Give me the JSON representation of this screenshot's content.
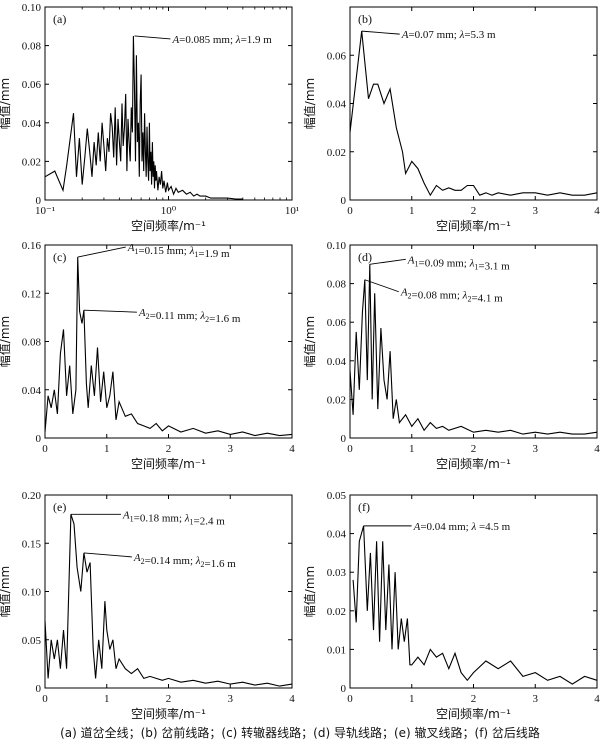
{
  "caption": "(a) 道岔全线；(b) 岔前线路；(c) 转辙器线路；(d) 导轨线路；(e) 辙叉线路；(f) 岔后线路",
  "chart_data": [
    {
      "type": "line",
      "panel_label": "(a)",
      "xlabel": "空间频率/m⁻¹",
      "ylabel": "幅值/mm",
      "xscale": "log",
      "xlim": [
        0.1,
        10
      ],
      "ylim": [
        0,
        0.1
      ],
      "xticks": [
        0.1,
        1,
        10
      ],
      "xtick_labels": [
        "10⁻¹",
        "10⁰",
        "10¹"
      ],
      "yticks": [
        0,
        0.02,
        0.04,
        0.06,
        0.08,
        0.1
      ],
      "ytick_labels": [
        "0",
        "0.02",
        "0.04",
        "0.06",
        "0.08",
        "0.10"
      ],
      "annotations": [
        {
          "text": "A=0.085 mm; λ=1.9 m",
          "x": 0.53,
          "y": 0.085
        }
      ],
      "series": [
        {
          "x": [
            0.1,
            0.12,
            0.14,
            0.15,
            0.17,
            0.18,
            0.19,
            0.2,
            0.21,
            0.22,
            0.23,
            0.24,
            0.25,
            0.26,
            0.27,
            0.28,
            0.29,
            0.3,
            0.31,
            0.32,
            0.33,
            0.34,
            0.35,
            0.36,
            0.37,
            0.38,
            0.39,
            0.4,
            0.41,
            0.42,
            0.43,
            0.44,
            0.45,
            0.46,
            0.47,
            0.48,
            0.49,
            0.5,
            0.51,
            0.52,
            0.53,
            0.54,
            0.55,
            0.56,
            0.57,
            0.58,
            0.59,
            0.6,
            0.61,
            0.62,
            0.63,
            0.64,
            0.65,
            0.66,
            0.67,
            0.68,
            0.69,
            0.7,
            0.71,
            0.72,
            0.73,
            0.74,
            0.75,
            0.76,
            0.77,
            0.78,
            0.79,
            0.8,
            0.82,
            0.84,
            0.86,
            0.88,
            0.9,
            0.92,
            0.95,
            0.98,
            1.0,
            1.05,
            1.1,
            1.15,
            1.2,
            1.3,
            1.4,
            1.5,
            1.6,
            1.7,
            1.8,
            2.0,
            2.2,
            2.5,
            3.0,
            3.5,
            4.0
          ],
          "y": [
            0.012,
            0.015,
            0.005,
            0.018,
            0.045,
            0.012,
            0.032,
            0.008,
            0.022,
            0.037,
            0.025,
            0.012,
            0.03,
            0.018,
            0.035,
            0.02,
            0.04,
            0.028,
            0.015,
            0.032,
            0.025,
            0.045,
            0.038,
            0.022,
            0.048,
            0.018,
            0.042,
            0.03,
            0.02,
            0.05,
            0.028,
            0.038,
            0.055,
            0.015,
            0.042,
            0.03,
            0.02,
            0.048,
            0.035,
            0.085,
            0.06,
            0.02,
            0.075,
            0.03,
            0.04,
            0.012,
            0.05,
            0.065,
            0.02,
            0.035,
            0.015,
            0.045,
            0.025,
            0.012,
            0.038,
            0.02,
            0.01,
            0.04,
            0.015,
            0.025,
            0.008,
            0.03,
            0.012,
            0.02,
            0.006,
            0.018,
            0.01,
            0.015,
            0.005,
            0.012,
            0.008,
            0.015,
            0.006,
            0.01,
            0.004,
            0.009,
            0.005,
            0.007,
            0.003,
            0.006,
            0.004,
            0.005,
            0.003,
            0.004,
            0.002,
            0.003,
            0.002,
            0.002,
            0.001,
            0.001,
            0.001,
            0.0005,
            0.0005
          ]
        }
      ]
    },
    {
      "type": "line",
      "panel_label": "(b)",
      "xlabel": "空间频率/m⁻¹",
      "ylabel": "幅值/mm",
      "xlim": [
        0,
        4
      ],
      "ylim": [
        0,
        0.08
      ],
      "xticks": [
        0,
        1,
        2,
        3,
        4
      ],
      "xtick_labels": [
        "0",
        "1",
        "2",
        "3",
        "4"
      ],
      "yticks": [
        0,
        0.02,
        0.04,
        0.06
      ],
      "ytick_labels": [
        "0",
        "0.02",
        "0.04",
        "0.06"
      ],
      "annotations": [
        {
          "text": "A=0.07 mm; λ=5.3 m",
          "x": 0.19,
          "y": 0.07
        }
      ],
      "series": [
        {
          "x": [
            0,
            0.19,
            0.3,
            0.38,
            0.45,
            0.55,
            0.65,
            0.75,
            0.8,
            0.85,
            0.9,
            1.0,
            1.1,
            1.2,
            1.3,
            1.4,
            1.5,
            1.6,
            1.7,
            1.8,
            1.9,
            2.0,
            2.1,
            2.2,
            2.3,
            2.4,
            2.6,
            2.8,
            3.0,
            3.2,
            3.4,
            3.6,
            3.8,
            4.0
          ],
          "y": [
            0.028,
            0.07,
            0.042,
            0.048,
            0.048,
            0.04,
            0.046,
            0.03,
            0.025,
            0.02,
            0.011,
            0.016,
            0.013,
            0.007,
            0.002,
            0.006,
            0.004,
            0.005,
            0.004,
            0.004,
            0.006,
            0.006,
            0.002,
            0.003,
            0.002,
            0.003,
            0.002,
            0.003,
            0.003,
            0.002,
            0.003,
            0.002,
            0.002,
            0.003
          ]
        }
      ]
    },
    {
      "type": "line",
      "panel_label": "(c)",
      "xlabel": "空间频率/m⁻¹",
      "ylabel": "幅值/mm",
      "xlim": [
        0,
        4
      ],
      "ylim": [
        0,
        0.16
      ],
      "xticks": [
        0,
        1,
        2,
        3,
        4
      ],
      "xtick_labels": [
        "0",
        "1",
        "2",
        "3",
        "4"
      ],
      "yticks": [
        0,
        0.04,
        0.08,
        0.12,
        0.16
      ],
      "ytick_labels": [
        "0",
        "0.04",
        "0.08",
        "0.12",
        "0.16"
      ],
      "annotations": [
        {
          "text": "A1=0.15 mm; λ1=1.9 m",
          "x": 0.53,
          "y": 0.15
        },
        {
          "text": "A2=0.11 mm; λ2=1.6 m",
          "x": 0.63,
          "y": 0.106
        }
      ],
      "series": [
        {
          "x": [
            0,
            0.05,
            0.1,
            0.15,
            0.2,
            0.25,
            0.3,
            0.35,
            0.4,
            0.45,
            0.5,
            0.53,
            0.56,
            0.6,
            0.63,
            0.67,
            0.7,
            0.75,
            0.8,
            0.85,
            0.9,
            0.95,
            1.0,
            1.05,
            1.1,
            1.15,
            1.2,
            1.3,
            1.4,
            1.5,
            1.6,
            1.7,
            1.8,
            1.9,
            2.0,
            2.2,
            2.4,
            2.6,
            2.8,
            3.0,
            3.2,
            3.4,
            3.6,
            3.8,
            4.0
          ],
          "y": [
            0.005,
            0.035,
            0.025,
            0.04,
            0.02,
            0.07,
            0.09,
            0.035,
            0.06,
            0.02,
            0.04,
            0.15,
            0.105,
            0.095,
            0.106,
            0.045,
            0.025,
            0.06,
            0.035,
            0.075,
            0.03,
            0.055,
            0.025,
            0.035,
            0.055,
            0.015,
            0.03,
            0.018,
            0.02,
            0.012,
            0.01,
            0.008,
            0.012,
            0.006,
            0.01,
            0.005,
            0.008,
            0.004,
            0.006,
            0.003,
            0.005,
            0.002,
            0.004,
            0.002,
            0.003
          ]
        }
      ]
    },
    {
      "type": "line",
      "panel_label": "(d)",
      "xlabel": "空间频率/m⁻¹",
      "ylabel": "幅值/mm",
      "xlim": [
        0,
        4
      ],
      "ylim": [
        0,
        0.1
      ],
      "xticks": [
        0,
        1,
        2,
        3,
        4
      ],
      "xtick_labels": [
        "0",
        "1",
        "2",
        "3",
        "4"
      ],
      "yticks": [
        0,
        0.02,
        0.04,
        0.06,
        0.08,
        0.1
      ],
      "ytick_labels": [
        "0",
        "0.02",
        "0.04",
        "0.06",
        "0.08",
        "0.10"
      ],
      "annotations": [
        {
          "text": "A1=0.09 mm; λ1=3.1 m",
          "x": 0.32,
          "y": 0.09
        },
        {
          "text": "A2=0.08 mm; λ2=4.1 m",
          "x": 0.24,
          "y": 0.082
        }
      ],
      "series": [
        {
          "x": [
            0,
            0.05,
            0.1,
            0.15,
            0.2,
            0.24,
            0.28,
            0.32,
            0.36,
            0.4,
            0.45,
            0.5,
            0.55,
            0.6,
            0.65,
            0.7,
            0.75,
            0.8,
            0.9,
            1.0,
            1.1,
            1.2,
            1.3,
            1.4,
            1.5,
            1.6,
            1.8,
            2.0,
            2.2,
            2.4,
            2.6,
            2.8,
            3.0,
            3.2,
            3.4,
            3.6,
            3.8,
            4.0
          ],
          "y": [
            0.035,
            0.012,
            0.055,
            0.025,
            0.065,
            0.082,
            0.03,
            0.09,
            0.02,
            0.075,
            0.015,
            0.057,
            0.03,
            0.02,
            0.045,
            0.01,
            0.02,
            0.008,
            0.012,
            0.006,
            0.01,
            0.004,
            0.008,
            0.005,
            0.006,
            0.004,
            0.006,
            0.003,
            0.004,
            0.003,
            0.004,
            0.002,
            0.003,
            0.002,
            0.003,
            0.002,
            0.002,
            0.003
          ]
        }
      ]
    },
    {
      "type": "line",
      "panel_label": "(e)",
      "xlabel": "空间频率/m⁻¹",
      "ylabel": "幅值/mm",
      "xlim": [
        0,
        4
      ],
      "ylim": [
        0,
        0.2
      ],
      "xticks": [
        0,
        1,
        2,
        3,
        4
      ],
      "xtick_labels": [
        "0",
        "1",
        "2",
        "3",
        "4"
      ],
      "yticks": [
        0,
        0.05,
        0.1,
        0.15,
        0.2
      ],
      "ytick_labels": [
        "0",
        "0.05",
        "0.10",
        "0.15",
        "0.20"
      ],
      "annotations": [
        {
          "text": "A1=0.18 mm; λ1=2.4 m",
          "x": 0.42,
          "y": 0.18
        },
        {
          "text": "A2=0.14 mm; λ2=1.6 m",
          "x": 0.63,
          "y": 0.14
        }
      ],
      "series": [
        {
          "x": [
            0,
            0.05,
            0.1,
            0.15,
            0.2,
            0.25,
            0.3,
            0.35,
            0.42,
            0.47,
            0.52,
            0.58,
            0.63,
            0.68,
            0.73,
            0.78,
            0.82,
            0.87,
            0.92,
            0.97,
            1.0,
            1.05,
            1.1,
            1.15,
            1.2,
            1.3,
            1.4,
            1.5,
            1.6,
            1.7,
            1.8,
            1.9,
            2.0,
            2.2,
            2.4,
            2.6,
            2.8,
            3.0,
            3.2,
            3.4,
            3.6,
            3.8,
            4.0
          ],
          "y": [
            0.07,
            0.01,
            0.05,
            0.03,
            0.05,
            0.02,
            0.06,
            0.02,
            0.18,
            0.17,
            0.125,
            0.1,
            0.14,
            0.12,
            0.13,
            0.04,
            0.01,
            0.05,
            0.02,
            0.09,
            0.06,
            0.04,
            0.05,
            0.02,
            0.03,
            0.02,
            0.015,
            0.02,
            0.01,
            0.012,
            0.01,
            0.008,
            0.01,
            0.006,
            0.008,
            0.005,
            0.007,
            0.004,
            0.006,
            0.003,
            0.005,
            0.002,
            0.004
          ]
        }
      ]
    },
    {
      "type": "line",
      "panel_label": "(f)",
      "xlabel": "空间频率/m⁻¹",
      "ylabel": "幅值/mm",
      "xlim": [
        0,
        4
      ],
      "ylim": [
        0,
        0.05
      ],
      "xticks": [
        0,
        1,
        2,
        3,
        4
      ],
      "xtick_labels": [
        "0",
        "1",
        "2",
        "3",
        "4"
      ],
      "yticks": [
        0,
        0.01,
        0.02,
        0.03,
        0.04,
        0.05
      ],
      "ytick_labels": [
        "0",
        "0.01",
        "0.02",
        "0.03",
        "0.04",
        "0.05"
      ],
      "annotations": [
        {
          "text": "A=0.04 mm; λ =4.5 m",
          "x": 0.22,
          "y": 0.042
        }
      ],
      "series": [
        {
          "x": [
            0.05,
            0.1,
            0.15,
            0.22,
            0.28,
            0.33,
            0.38,
            0.43,
            0.48,
            0.53,
            0.58,
            0.63,
            0.68,
            0.73,
            0.78,
            0.83,
            0.88,
            0.93,
            0.97,
            1.0,
            1.1,
            1.2,
            1.3,
            1.4,
            1.5,
            1.6,
            1.7,
            1.8,
            1.9,
            2.0,
            2.2,
            2.4,
            2.6,
            2.8,
            3.0,
            3.2,
            3.4,
            3.6,
            3.8,
            4.0
          ],
          "y": [
            0.028,
            0.017,
            0.038,
            0.042,
            0.02,
            0.035,
            0.015,
            0.038,
            0.012,
            0.038,
            0.015,
            0.032,
            0.01,
            0.03,
            0.01,
            0.018,
            0.012,
            0.018,
            0.006,
            0.006,
            0.008,
            0.006,
            0.01,
            0.008,
            0.009,
            0.005,
            0.009,
            0.004,
            0.002,
            0.004,
            0.007,
            0.005,
            0.007,
            0.003,
            0.004,
            0.002,
            0.003,
            0.001,
            0.003,
            0.002
          ]
        }
      ]
    }
  ]
}
